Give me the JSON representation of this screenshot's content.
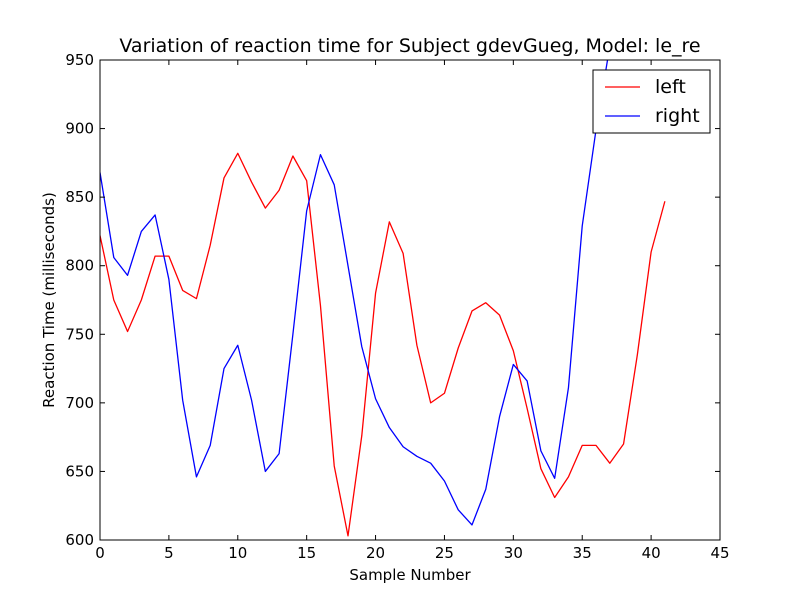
{
  "chart_data": {
    "type": "line",
    "title": "Variation of reaction time for Subject gdevGueg, Model: le_re",
    "xlabel": "Sample Number",
    "ylabel": "Reaction Time (milliseconds)",
    "xlim": [
      0,
      45
    ],
    "ylim": [
      600,
      950
    ],
    "xticks": [
      0,
      5,
      10,
      15,
      20,
      25,
      30,
      35,
      40,
      45
    ],
    "yticks": [
      600,
      650,
      700,
      750,
      800,
      850,
      900,
      950
    ],
    "grid": false,
    "legend_position": "top-right",
    "series": [
      {
        "name": "left",
        "color": "#ff0000",
        "x": [
          0,
          1,
          2,
          3,
          4,
          5,
          6,
          7,
          8,
          9,
          10,
          11,
          12,
          13,
          14,
          15,
          16,
          17,
          18,
          19,
          20,
          21,
          22,
          23,
          24,
          25,
          26,
          27,
          28,
          29,
          30,
          31,
          32,
          33,
          34,
          35,
          36,
          37,
          38,
          39,
          40,
          41
        ],
        "values": [
          822,
          775,
          752,
          775,
          807,
          807,
          782,
          776,
          815,
          864,
          882,
          861,
          842,
          855,
          880,
          862,
          771,
          654,
          603,
          676,
          780,
          832,
          809,
          742,
          700,
          707,
          740,
          767,
          773,
          764,
          738,
          696,
          652,
          631,
          646,
          669,
          669,
          656,
          670,
          735,
          810,
          847
        ]
      },
      {
        "name": "right",
        "color": "#0000ff",
        "x": [
          0,
          1,
          2,
          3,
          4,
          5,
          6,
          7,
          8,
          9,
          10,
          11,
          12,
          13,
          14,
          15,
          16,
          17,
          18,
          19,
          20,
          21,
          22,
          23,
          24,
          25,
          26,
          27,
          28,
          29,
          30,
          31,
          32,
          33,
          34,
          35,
          36,
          37
        ],
        "values": [
          868,
          806,
          793,
          825,
          837,
          790,
          702,
          646,
          669,
          725,
          742,
          702,
          650,
          663,
          750,
          840,
          881,
          859,
          800,
          741,
          703,
          682,
          668,
          661,
          656,
          643,
          622,
          611,
          637,
          690,
          728,
          716,
          665,
          645,
          711,
          829,
          899,
          960
        ]
      }
    ]
  }
}
